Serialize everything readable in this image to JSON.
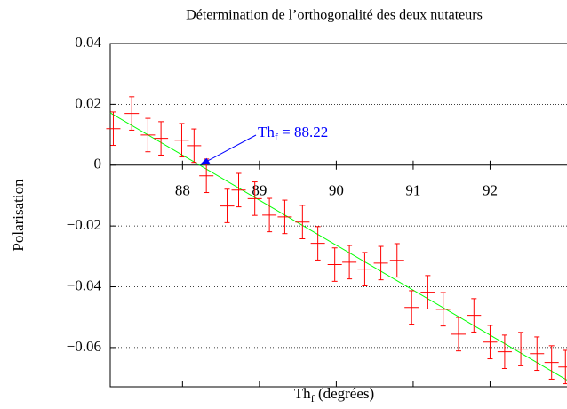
{
  "chart_data": {
    "type": "scatter",
    "title": "Détermination de l’orthogonalité des deux nutateurs",
    "x_label": {
      "main": "Th",
      "sub": "f",
      "rest": " (degrées)"
    },
    "y_label": "Polarisation",
    "xlim": [
      87.06,
      93.0
    ],
    "xticks": [
      88,
      89,
      90,
      91,
      92
    ],
    "ylim": [
      -0.0729,
      0.04
    ],
    "yticks": [
      {
        "value": -0.06,
        "label": "−0.06"
      },
      {
        "value": -0.04,
        "label": "−0.04"
      },
      {
        "value": -0.02,
        "label": "−0.02"
      },
      0,
      0.02,
      0.04
    ],
    "grid": true,
    "series": [
      {
        "color": "#ff0000",
        "x": [
          87.1,
          87.34,
          87.55,
          87.72,
          87.99,
          88.15,
          88.31,
          88.58,
          88.73,
          88.94,
          89.13,
          89.33,
          89.56,
          89.76,
          89.98,
          90.17,
          90.37,
          90.58,
          90.79,
          90.98,
          91.19,
          91.39,
          91.59,
          91.79,
          92.0,
          92.19,
          92.4,
          92.61,
          92.8,
          92.98
        ],
        "values": [
          0.012,
          0.017,
          0.0099,
          0.0088,
          0.0082,
          0.0064,
          -0.0035,
          -0.0134,
          -0.0082,
          -0.011,
          -0.0164,
          -0.017,
          -0.0187,
          -0.0257,
          -0.0327,
          -0.0319,
          -0.0342,
          -0.0322,
          -0.0313,
          -0.0468,
          -0.0418,
          -0.0474,
          -0.0556,
          -0.0494,
          -0.0582,
          -0.0614,
          -0.0605,
          -0.062,
          -0.0649,
          -0.0664
        ],
        "errors": [
          0.0055,
          0.0055,
          0.0055,
          0.0055,
          0.0055,
          0.0055,
          0.0055,
          0.0055,
          0.0055,
          0.0055,
          0.0055,
          0.0055,
          0.0055,
          0.0055,
          0.0055,
          0.0055,
          0.0055,
          0.0055,
          0.0055,
          0.0055,
          0.0055,
          0.0055,
          0.0055,
          0.0055,
          0.0055,
          0.0055,
          0.0055,
          0.0055,
          0.0055,
          0.0055
        ]
      }
    ],
    "fit": {
      "color": "#00ff00",
      "x": [
        87.06,
        93.0
      ],
      "y": [
        0.0172,
        -0.0707
      ]
    },
    "annotation": {
      "main": "Th",
      "sub": "f",
      "rest": " = 88.22",
      "x": 88.22,
      "y": 0,
      "color": "#0000ff"
    }
  }
}
